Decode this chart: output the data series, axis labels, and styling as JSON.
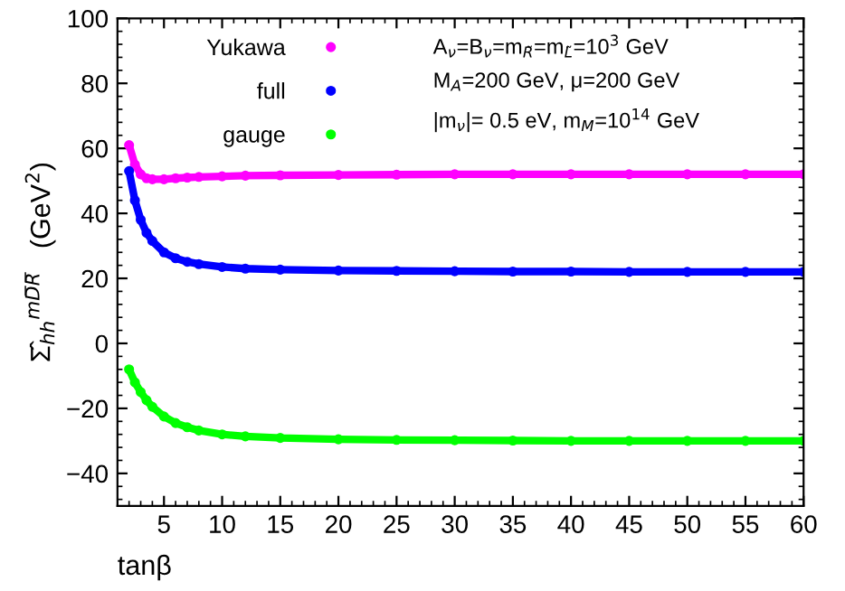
{
  "chart_data": {
    "type": "line",
    "xlabel": "tanβ",
    "ylabel": "Σ̂$_{hh}$$^{mD̅R̅}$   (GeV$^{2}$)",
    "x": [
      2,
      2.5,
      3,
      3.5,
      4,
      5,
      6,
      7,
      8,
      10,
      12,
      15,
      20,
      25,
      30,
      35,
      40,
      45,
      50,
      55,
      60
    ],
    "series": [
      {
        "name": "Yukawa",
        "color": "#ff00ff",
        "values": [
          61,
          55,
          52,
          50.8,
          50.5,
          50.5,
          50.8,
          51,
          51.2,
          51.4,
          51.6,
          51.7,
          51.8,
          51.9,
          52,
          52,
          52,
          52,
          52,
          52,
          52
        ]
      },
      {
        "name": "full",
        "color": "#0000ff",
        "values": [
          53,
          44,
          38,
          34,
          31.5,
          28,
          26.2,
          25.1,
          24.4,
          23.5,
          23,
          22.7,
          22.4,
          22.3,
          22.2,
          22.1,
          22.1,
          22,
          22,
          22,
          22
        ]
      },
      {
        "name": "gauge",
        "color": "#00ff00",
        "values": [
          -8,
          -12,
          -15,
          -17.5,
          -19.5,
          -22.5,
          -24.5,
          -25.8,
          -26.8,
          -28,
          -28.6,
          -29.1,
          -29.5,
          -29.7,
          -29.8,
          -29.9,
          -30,
          -30,
          -30,
          -30,
          -30
        ]
      }
    ],
    "annotations": [
      "A$_{ν}$=B$_{ν}$=m$_{R̃}$=m$_{L̃}$=10$^{3}$ GeV",
      "M$_{A}$=200 GeV, μ=200 GeV",
      "|m$_{ν}$|= 0.5 eV, m$_{M}$=10$^{14}$ GeV"
    ],
    "xlim": [
      1,
      60
    ],
    "xticks": [
      5,
      10,
      15,
      20,
      25,
      30,
      35,
      40,
      45,
      50,
      55,
      60
    ],
    "ylim": [
      -50,
      100
    ],
    "yticks": [
      -40,
      -20,
      0,
      20,
      40,
      60,
      80,
      100
    ],
    "legend": "top left",
    "marker": "circle",
    "line_style": "solid",
    "grid": false
  }
}
